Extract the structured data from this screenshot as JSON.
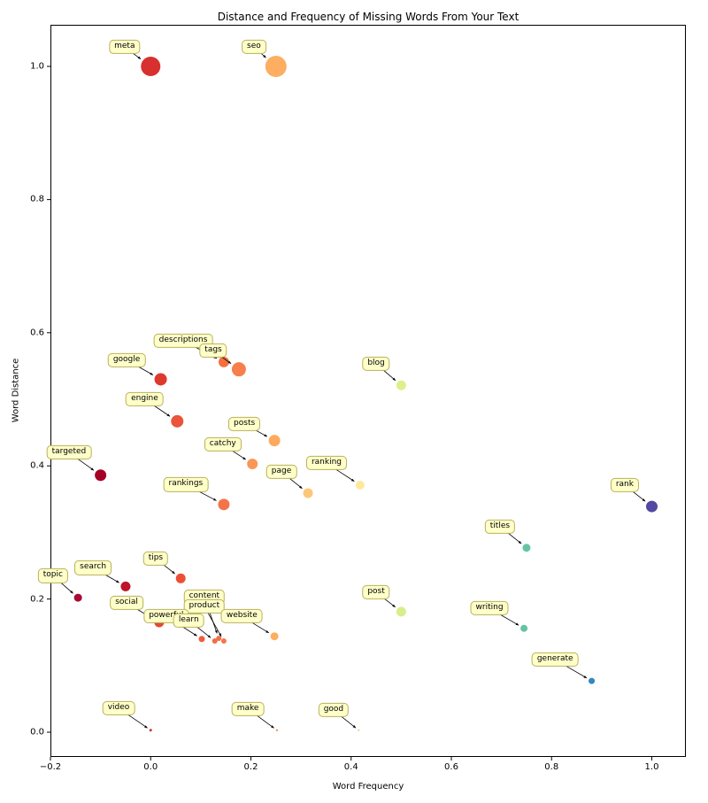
{
  "chart_data": {
    "type": "scatter",
    "title": "Distance and Frequency of Missing Words From Your Text",
    "xlabel": "Word Frequency",
    "ylabel": "Word Distance",
    "xlim": [
      -0.2,
      1.068
    ],
    "ylim": [
      -0.0372,
      1.0625
    ],
    "grid": false,
    "legend": "none",
    "annotation_style": {
      "facecolor": "#ffffc9",
      "edgecolor": "#b9b05c",
      "text_color": "#000000"
    },
    "xticks": [
      {
        "v": -0.2,
        "label": "−0.2"
      },
      {
        "v": 0.0,
        "label": "0.0"
      },
      {
        "v": 0.2,
        "label": "0.2"
      },
      {
        "v": 0.4,
        "label": "0.4"
      },
      {
        "v": 0.6,
        "label": "0.6"
      },
      {
        "v": 0.8,
        "label": "0.8"
      },
      {
        "v": 1.0,
        "label": "1.0"
      }
    ],
    "yticks": [
      {
        "v": 0.0,
        "label": "0.0"
      },
      {
        "v": 0.2,
        "label": "0.2"
      },
      {
        "v": 0.4,
        "label": "0.4"
      },
      {
        "v": 0.6,
        "label": "0.6"
      },
      {
        "v": 0.8,
        "label": "0.8"
      },
      {
        "v": 1.0,
        "label": "1.0"
      }
    ],
    "points": [
      {
        "label": "meta",
        "x": 0.0,
        "y": 1.0,
        "r": 11,
        "color": "#d7302e",
        "label_x": -0.052,
        "label_y": 1.029
      },
      {
        "label": "seo",
        "x": 0.25,
        "y": 1.0,
        "r": 12,
        "color": "#fdae61",
        "label_x": 0.206,
        "label_y": 1.029
      },
      {
        "label": "descriptions",
        "x": 0.146,
        "y": 0.556,
        "r": 6,
        "color": "#f4713f",
        "label_x": 0.065,
        "label_y": 0.588
      },
      {
        "label": "tags",
        "x": 0.176,
        "y": 0.545,
        "r": 8,
        "color": "#f67f4b",
        "label_x": 0.125,
        "label_y": 0.573
      },
      {
        "label": "google",
        "x": 0.02,
        "y": 0.53,
        "r": 7,
        "color": "#dc3a2c",
        "label_x": -0.048,
        "label_y": 0.559
      },
      {
        "label": "engine",
        "x": 0.053,
        "y": 0.467,
        "r": 7,
        "color": "#e9543a",
        "label_x": -0.012,
        "label_y": 0.5
      },
      {
        "label": "blog",
        "x": 0.5,
        "y": 0.521,
        "r": 5.5,
        "color": "#dcf08c",
        "label_x": 0.45,
        "label_y": 0.553
      },
      {
        "label": "posts",
        "x": 0.247,
        "y": 0.438,
        "r": 6.5,
        "color": "#fdaa5f",
        "label_x": 0.187,
        "label_y": 0.463
      },
      {
        "label": "catchy",
        "x": 0.203,
        "y": 0.403,
        "r": 6,
        "color": "#fb9657",
        "label_x": 0.144,
        "label_y": 0.432
      },
      {
        "label": "targeted",
        "x": -0.1,
        "y": 0.386,
        "r": 6.5,
        "color": "#a50026",
        "label_x": -0.163,
        "label_y": 0.42
      },
      {
        "label": "page",
        "x": 0.314,
        "y": 0.359,
        "r": 5.5,
        "color": "#fdc778",
        "label_x": 0.261,
        "label_y": 0.391
      },
      {
        "label": "ranking",
        "x": 0.418,
        "y": 0.371,
        "r": 5,
        "color": "#fee89b",
        "label_x": 0.351,
        "label_y": 0.404
      },
      {
        "label": "rankings",
        "x": 0.146,
        "y": 0.342,
        "r": 6.5,
        "color": "#f4744a",
        "label_x": 0.07,
        "label_y": 0.372
      },
      {
        "label": "rank",
        "x": 1.0,
        "y": 0.339,
        "r": 6.5,
        "color": "#5348a2",
        "label_x": 0.946,
        "label_y": 0.371
      },
      {
        "label": "titles",
        "x": 0.75,
        "y": 0.277,
        "r": 4.5,
        "color": "#68c3a5",
        "label_x": 0.697,
        "label_y": 0.309
      },
      {
        "label": "tips",
        "x": 0.06,
        "y": 0.231,
        "r": 5.5,
        "color": "#ec4f38",
        "label_x": 0.01,
        "label_y": 0.261
      },
      {
        "label": "search",
        "x": -0.05,
        "y": 0.219,
        "r": 5.5,
        "color": "#bb1526",
        "label_x": -0.115,
        "label_y": 0.247
      },
      {
        "label": "topic",
        "x": -0.145,
        "y": 0.202,
        "r": 4.5,
        "color": "#a60a32",
        "label_x": -0.195,
        "label_y": 0.235
      },
      {
        "label": "social",
        "x": 0.017,
        "y": 0.165,
        "r": 5.5,
        "color": "#e14b33",
        "label_x": -0.048,
        "label_y": 0.194
      },
      {
        "label": "content",
        "x": 0.136,
        "y": 0.141,
        "r": 3,
        "color": "#f3704b",
        "label_x": 0.107,
        "label_y": 0.203
      },
      {
        "label": "product",
        "x": 0.146,
        "y": 0.137,
        "r": 3,
        "color": "#f4764d",
        "label_x": 0.107,
        "label_y": 0.189
      },
      {
        "label": "powerful",
        "x": 0.102,
        "y": 0.14,
        "r": 3.5,
        "color": "#ef5c41",
        "label_x": 0.031,
        "label_y": 0.174
      },
      {
        "label": "learn",
        "x": 0.128,
        "y": 0.137,
        "r": 3,
        "color": "#f26b47",
        "label_x": 0.076,
        "label_y": 0.168
      },
      {
        "label": "website",
        "x": 0.247,
        "y": 0.144,
        "r": 4.5,
        "color": "#fdae61",
        "label_x": 0.182,
        "label_y": 0.174
      },
      {
        "label": "post",
        "x": 0.5,
        "y": 0.181,
        "r": 5.5,
        "color": "#d7ee8a",
        "label_x": 0.45,
        "label_y": 0.21
      },
      {
        "label": "writing",
        "x": 0.745,
        "y": 0.156,
        "r": 4,
        "color": "#66c2a5",
        "label_x": 0.676,
        "label_y": 0.186
      },
      {
        "label": "generate",
        "x": 0.88,
        "y": 0.077,
        "r": 3.5,
        "color": "#3288bd",
        "label_x": 0.807,
        "label_y": 0.109
      },
      {
        "label": "video",
        "x": 0.0,
        "y": 0.003,
        "r": 1.5,
        "color": "#d7302e",
        "label_x": -0.064,
        "label_y": 0.036
      },
      {
        "label": "make",
        "x": 0.252,
        "y": 0.003,
        "r": 1.2,
        "color": "#e89554",
        "label_x": 0.194,
        "label_y": 0.035
      },
      {
        "label": "good",
        "x": 0.415,
        "y": 0.003,
        "r": 1.2,
        "color": "#e5d98d",
        "label_x": 0.365,
        "label_y": 0.033
      }
    ]
  }
}
